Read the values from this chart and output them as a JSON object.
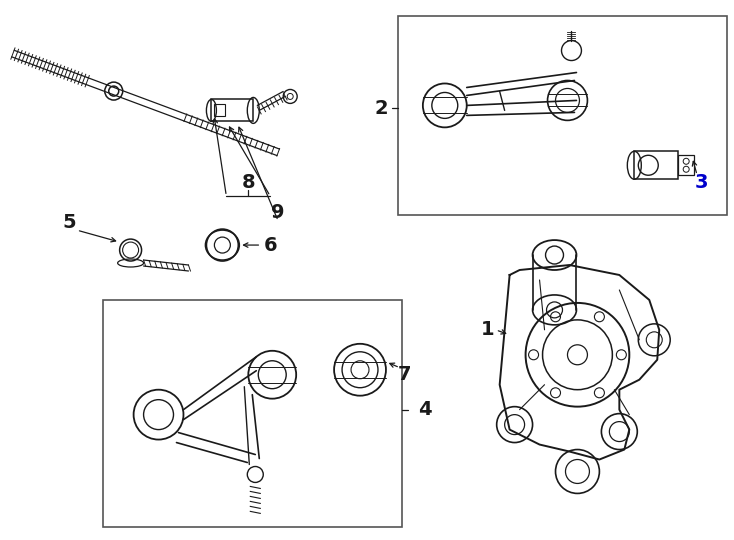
{
  "bg_color": "#ffffff",
  "line_color": "#1a1a1a",
  "fig_width": 7.34,
  "fig_height": 5.4,
  "dpi": 100,
  "label_fontsize": 13,
  "box_color": "#444444",
  "label_3_color": "#0000cc"
}
